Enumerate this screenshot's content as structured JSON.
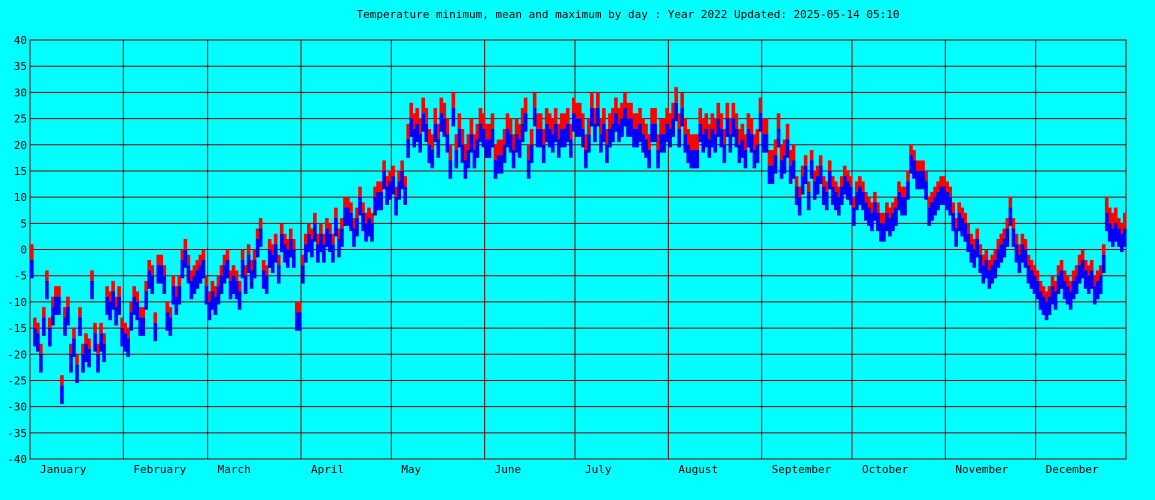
{
  "chart_data": {
    "type": "bar",
    "title": "Temperature minimum, mean and maximum by day : Year 2022   Updated: 2025-05-14 05:10",
    "xlabel": "",
    "ylabel": "",
    "ylim": [
      -40,
      40
    ],
    "yticks": [
      "40",
      "35",
      "30",
      "25",
      "20",
      "15",
      "10",
      "5",
      "0",
      "-5",
      "-10",
      "-15",
      "-20",
      "-25",
      "-30",
      "-35",
      "-40"
    ],
    "months": [
      "January",
      "February",
      "March",
      "April",
      "May",
      "June",
      "July",
      "August",
      "September",
      "October",
      "November",
      "December"
    ],
    "grid": true,
    "colors": {
      "background": "#00ffff",
      "max": "#ff0000",
      "mean": "#0000ff",
      "grid": "#7f0000"
    },
    "daily_max_approx": [
      1,
      -13,
      -14,
      -18,
      -11,
      -4,
      -13,
      -9,
      -7,
      -7,
      -24,
      -11,
      -9,
      -18,
      -15,
      -20,
      -11,
      -18,
      -16,
      -17,
      -4,
      -14,
      -18,
      -14,
      -16,
      -7,
      -8,
      -6,
      -9,
      -7,
      -13,
      -14,
      -15,
      -10,
      -7,
      -8,
      -11,
      -11,
      -6,
      -2,
      -3,
      -12,
      -1,
      -1,
      -3,
      -10,
      -11,
      -5,
      -7,
      -5,
      0,
      2,
      -1,
      -4,
      -3,
      -2,
      -1,
      0,
      -5,
      -8,
      -6,
      -7,
      -5,
      -3,
      -1,
      0,
      -4,
      -3,
      -4,
      -6,
      0,
      -3,
      1,
      -2,
      0,
      4,
      6,
      -2,
      -3,
      2,
      1,
      3,
      -1,
      5,
      3,
      2,
      4,
      2,
      -10,
      -10,
      -1,
      3,
      5,
      4,
      7,
      3,
      5,
      3,
      6,
      5,
      3,
      8,
      4,
      6,
      10,
      10,
      9,
      6,
      8,
      12,
      9,
      7,
      8,
      7,
      12,
      13,
      13,
      17,
      14,
      15,
      16,
      12,
      15,
      17,
      14,
      24,
      28,
      26,
      27,
      25,
      29,
      27,
      23,
      22,
      27,
      24,
      29,
      28,
      25,
      20,
      30,
      22,
      26,
      23,
      20,
      22,
      25,
      22,
      24,
      27,
      26,
      24,
      24,
      26,
      20,
      21,
      21,
      23,
      26,
      25,
      22,
      25,
      24,
      27,
      29,
      20,
      23,
      30,
      26,
      26,
      23,
      27,
      26,
      25,
      27,
      24,
      26,
      26,
      27,
      24,
      29,
      28,
      28,
      26,
      22,
      25,
      30,
      27,
      30,
      25,
      27,
      23,
      26,
      27,
      29,
      27,
      28,
      30,
      28,
      28,
      26,
      26,
      27,
      25,
      24,
      22,
      27,
      27,
      22,
      25,
      25,
      27,
      26,
      28,
      31,
      26,
      30,
      25,
      23,
      22,
      22,
      22,
      27,
      25,
      26,
      24,
      26,
      25,
      28,
      26,
      23,
      28,
      25,
      28,
      26,
      23,
      24,
      22,
      26,
      25,
      22,
      23,
      29,
      25,
      25,
      19,
      19,
      21,
      26,
      20,
      21,
      24,
      19,
      20,
      14,
      12,
      16,
      18,
      13,
      19,
      15,
      16,
      18,
      14,
      13,
      17,
      14,
      13,
      12,
      14,
      16,
      15,
      14,
      10,
      13,
      14,
      13,
      11,
      10,
      9,
      11,
      9,
      7,
      7,
      9,
      8,
      9,
      10,
      13,
      12,
      12,
      15,
      20,
      19,
      17,
      17,
      17,
      15,
      10,
      11,
      12,
      13,
      14,
      14,
      13,
      12,
      9,
      6,
      9,
      8,
      7,
      5,
      3,
      2,
      4,
      1,
      -1,
      0,
      -2,
      -1,
      0,
      2,
      3,
      4,
      6,
      10,
      6,
      3,
      1,
      3,
      2,
      -1,
      -2,
      -3,
      -4,
      -6,
      -7,
      -8,
      -7,
      -5,
      -6,
      -3,
      -2,
      -4,
      -5,
      -6,
      -4,
      -3,
      -1,
      0,
      -2,
      -3,
      -2,
      -5,
      -4,
      -3,
      1,
      10,
      8,
      7,
      8,
      6,
      5,
      7
    ],
    "daily_mean_approx": [
      -2,
      -15,
      -16,
      -20,
      -13,
      -6,
      -15,
      -11,
      -9,
      -9,
      -26,
      -13,
      -11,
      -20,
      -17,
      -22,
      -13,
      -20,
      -18,
      -19,
      -6,
      -16,
      -20,
      -16,
      -18,
      -9,
      -10,
      -8,
      -11,
      -9,
      -15,
      -16,
      -17,
      -12,
      -9,
      -10,
      -13,
      -13,
      -8,
      -4,
      -5,
      -14,
      -3,
      -3,
      -5,
      -12,
      -13,
      -7,
      -9,
      -7,
      -2,
      0,
      -3,
      -6,
      -5,
      -4,
      -3,
      -2,
      -7,
      -10,
      -8,
      -9,
      -7,
      -5,
      -3,
      -2,
      -6,
      -5,
      -6,
      -8,
      -2,
      -5,
      -1,
      -4,
      -2,
      2,
      4,
      -4,
      -5,
      0,
      -1,
      1,
      -3,
      3,
      1,
      0,
      2,
      0,
      -12,
      -12,
      -3,
      1,
      3,
      2,
      5,
      1,
      3,
      1,
      4,
      3,
      1,
      6,
      2,
      4,
      8,
      8,
      7,
      4,
      6,
      10,
      7,
      5,
      6,
      5,
      10,
      11,
      11,
      15,
      12,
      13,
      14,
      10,
      13,
      15,
      12,
      21,
      25,
      23,
      24,
      22,
      26,
      24,
      20,
      19,
      24,
      21,
      26,
      25,
      22,
      17,
      27,
      19,
      23,
      20,
      17,
      19,
      22,
      19,
      21,
      24,
      23,
      21,
      21,
      23,
      17,
      18,
      18,
      20,
      23,
      22,
      19,
      22,
      21,
      24,
      26,
      17,
      20,
      27,
      23,
      23,
      20,
      24,
      23,
      22,
      24,
      21,
      23,
      23,
      24,
      21,
      26,
      25,
      25,
      23,
      19,
      22,
      27,
      24,
      27,
      22,
      24,
      20,
      23,
      24,
      26,
      24,
      25,
      27,
      25,
      25,
      23,
      23,
      24,
      22,
      21,
      19,
      24,
      24,
      19,
      22,
      22,
      24,
      23,
      25,
      28,
      23,
      27,
      22,
      20,
      19,
      19,
      19,
      24,
      22,
      23,
      21,
      23,
      22,
      25,
      23,
      20,
      25,
      22,
      25,
      23,
      20,
      21,
      19,
      23,
      22,
      19,
      20,
      26,
      22,
      22,
      16,
      16,
      18,
      23,
      17,
      18,
      21,
      16,
      17,
      12,
      10,
      14,
      16,
      11,
      17,
      13,
      14,
      16,
      12,
      11,
      15,
      12,
      11,
      10,
      12,
      14,
      13,
      12,
      8,
      11,
      12,
      11,
      9,
      8,
      7,
      9,
      7,
      5,
      5,
      7,
      6,
      7,
      8,
      11,
      10,
      10,
      13,
      18,
      17,
      15,
      15,
      15,
      13,
      8,
      9,
      10,
      11,
      12,
      12,
      11,
      10,
      7,
      4,
      7,
      6,
      5,
      3,
      1,
      0,
      2,
      -1,
      -3,
      -2,
      -4,
      -3,
      -2,
      0,
      1,
      2,
      4,
      8,
      4,
      1,
      -1,
      1,
      0,
      -3,
      -4,
      -5,
      -6,
      -8,
      -9,
      -10,
      -9,
      -7,
      -8,
      -5,
      -4,
      -6,
      -7,
      -8,
      -6,
      -5,
      -3,
      -2,
      -4,
      -5,
      -4,
      -7,
      -6,
      -5,
      -1,
      7,
      5,
      4,
      5,
      4,
      3,
      4
    ]
  }
}
